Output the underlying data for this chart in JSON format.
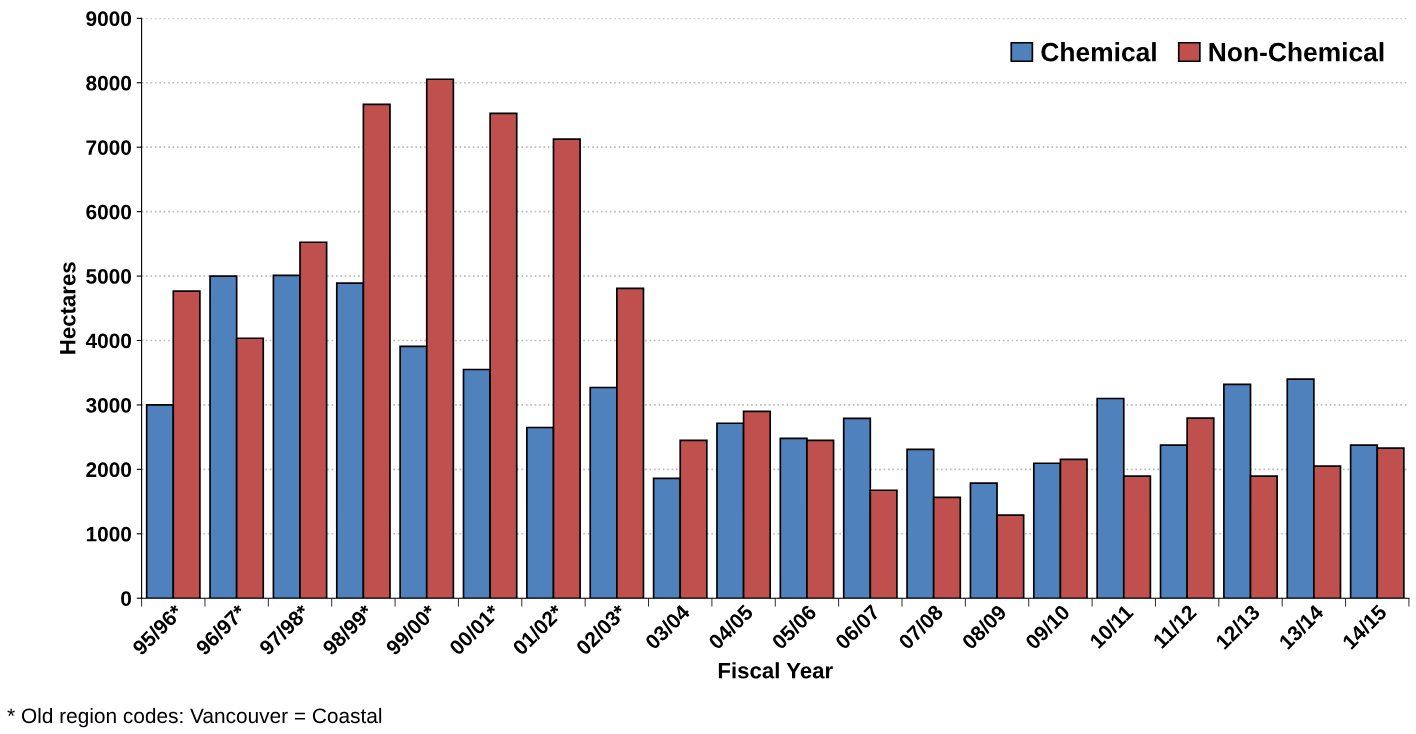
{
  "chart_data": {
    "type": "bar",
    "xlabel": "Fiscal Year",
    "ylabel": "Hectares",
    "categories": [
      "95/96*",
      "96/97*",
      "97/98*",
      "98/99*",
      "99/00*",
      "00/01*",
      "01/02*",
      "02/03*",
      "03/04",
      "04/05",
      "05/06",
      "06/07",
      "07/08",
      "08/09",
      "09/10",
      "10/11",
      "11/12",
      "12/13",
      "13/14",
      "14/15"
    ],
    "series": [
      {
        "name": "Chemical",
        "color": "#4f81bd",
        "values": [
          3000,
          5000,
          5010,
          4890,
          3910,
          3550,
          2650,
          3270,
          1860,
          2715,
          2480,
          2790,
          2310,
          1785,
          2095,
          3100,
          2375,
          3320,
          3400,
          2375
        ]
      },
      {
        "name": "Non-Chemical",
        "color": "#c0504d",
        "values": [
          4765,
          4035,
          5525,
          7665,
          8055,
          7525,
          7125,
          4810,
          2450,
          2900,
          2450,
          1675,
          1565,
          1290,
          2155,
          1895,
          2795,
          1895,
          2050,
          2330
        ]
      }
    ],
    "ylim": [
      0,
      9000
    ],
    "yticks": [
      0,
      1000,
      2000,
      3000,
      4000,
      5000,
      6000,
      7000,
      8000,
      9000
    ],
    "grid": "y",
    "legend": "top right",
    "annotations": [
      "* Old region codes: Vancouver = Coastal"
    ]
  }
}
